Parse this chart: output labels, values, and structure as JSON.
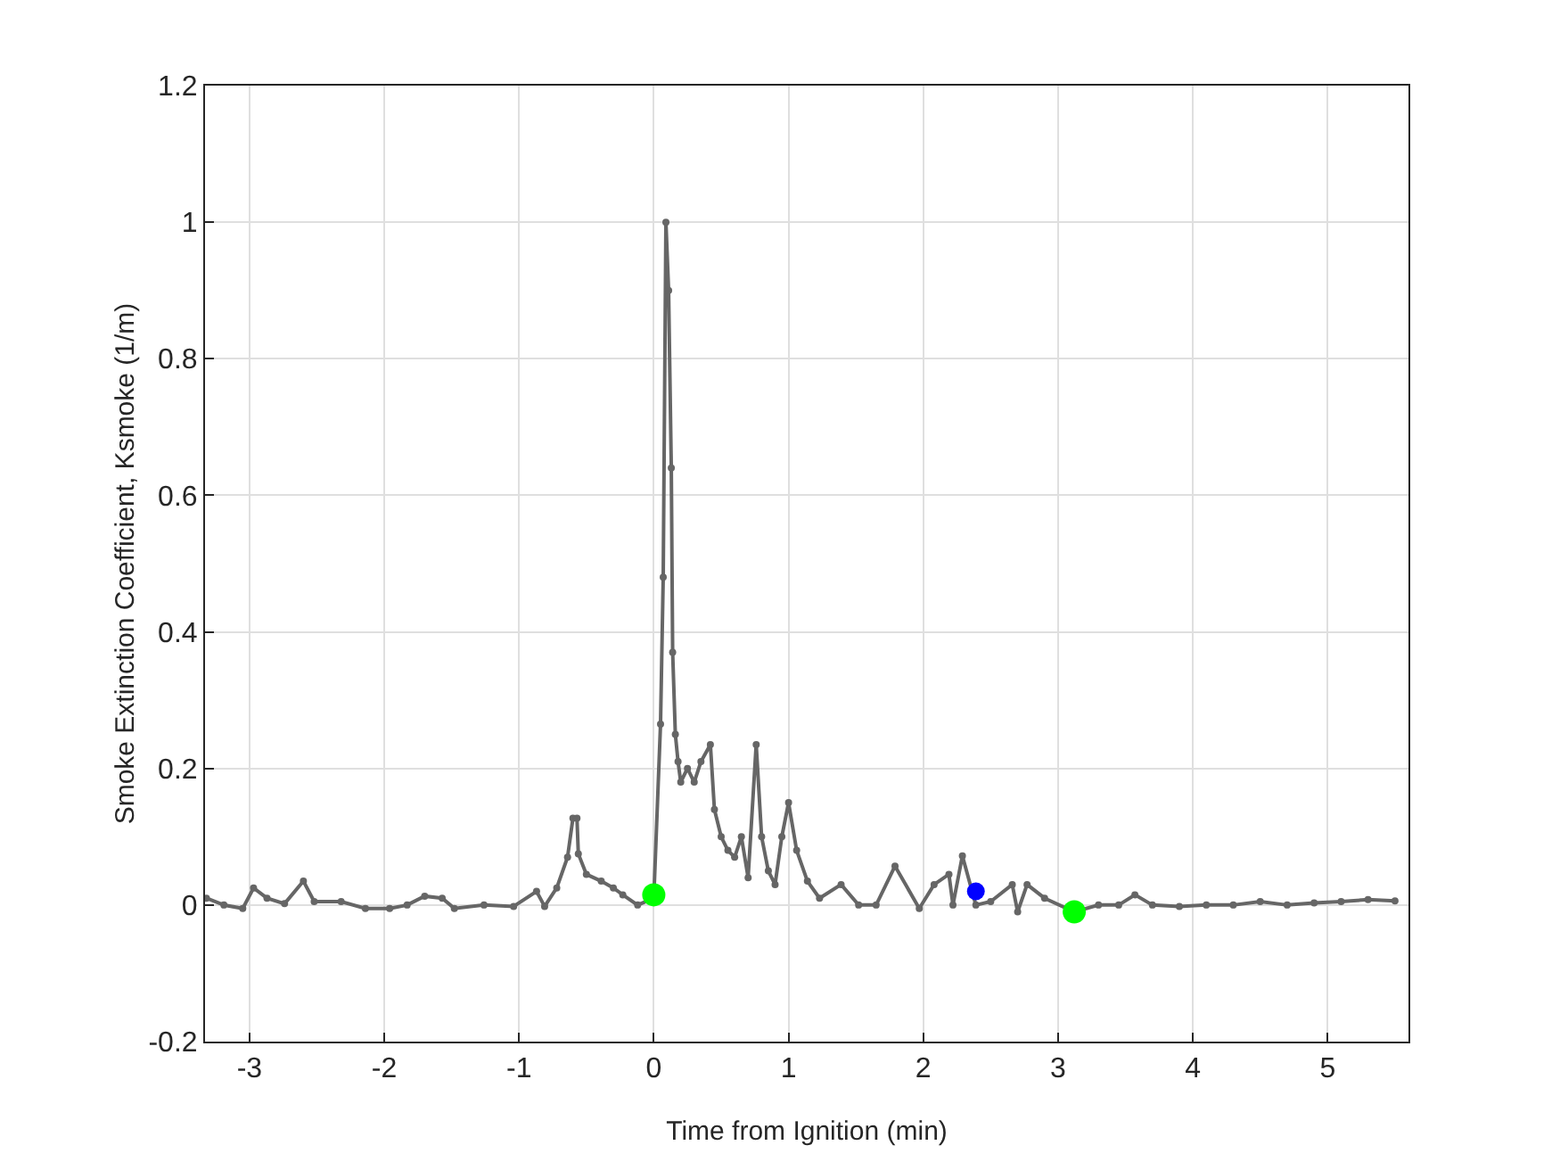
{
  "chart_data": {
    "type": "line",
    "xlabel": "Time from Ignition (min)",
    "ylabel": "Smoke Extinction Coefficient, Ksmoke (1/m)",
    "xlim": [
      -3.33,
      5.6
    ],
    "xticks": [
      -3,
      -2,
      -1,
      0,
      1,
      2,
      3,
      4,
      5
    ],
    "ylim": [
      -0.2,
      1.2
    ],
    "yticks": [
      -0.2,
      0,
      0.2,
      0.4,
      0.6,
      0.8,
      1,
      1.2
    ],
    "grid": true,
    "series": [
      {
        "color": "#666666",
        "marker": "circle",
        "line_style": "solid",
        "x": [
          -3.32,
          -3.19,
          -3.05,
          -2.97,
          -2.87,
          -2.74,
          -2.6,
          -2.52,
          -2.32,
          -2.14,
          -1.96,
          -1.83,
          -1.7,
          -1.57,
          -1.48,
          -1.26,
          -1.04,
          -0.87,
          -0.81,
          -0.72,
          -0.64,
          -0.6,
          -0.57,
          -0.56,
          -0.5,
          -0.39,
          -0.3,
          -0.23,
          -0.12,
          0,
          0.05,
          0.07,
          0.09,
          0.11,
          0.13,
          0.14,
          0.16,
          0.18,
          0.2,
          0.25,
          0.3,
          0.35,
          0.42,
          0.45,
          0.5,
          0.55,
          0.6,
          0.65,
          0.7,
          0.76,
          0.8,
          0.85,
          0.9,
          0.95,
          1.0,
          1.06,
          1.14,
          1.23,
          1.39,
          1.52,
          1.65,
          1.79,
          1.97,
          2.08,
          2.19,
          2.22,
          2.29,
          2.39,
          2.5,
          2.66,
          2.7,
          2.77,
          2.9,
          3.12,
          3.3,
          3.45,
          3.57,
          3.7,
          3.9,
          4.1,
          4.3,
          4.5,
          4.7,
          4.9,
          5.1,
          5.3,
          5.5
        ],
        "values": [
          0.01,
          0,
          -0.005,
          0.025,
          0.01,
          0.002,
          0.035,
          0.005,
          0.005,
          -0.005,
          -0.005,
          0,
          0.013,
          0.01,
          -0.005,
          0,
          -0.002,
          0.02,
          -0.002,
          0.025,
          0.07,
          0.127,
          0.127,
          0.075,
          0.045,
          0.035,
          0.025,
          0.015,
          0,
          0.01,
          0.265,
          0.48,
          1.0,
          0.9,
          0.64,
          0.37,
          0.25,
          0.21,
          0.18,
          0.2,
          0.18,
          0.21,
          0.235,
          0.14,
          0.1,
          0.08,
          0.07,
          0.1,
          0.04,
          0.235,
          0.1,
          0.05,
          0.03,
          0.1,
          0.15,
          0.08,
          0.035,
          0.01,
          0.03,
          0,
          0,
          0.057,
          -0.005,
          0.03,
          0.045,
          0,
          0.072,
          0,
          0.005,
          0.03,
          -0.01,
          0.03,
          0.01,
          -0.01,
          0,
          0,
          0.015,
          0,
          -0.002,
          0,
          0,
          0.005,
          0,
          0.003,
          0.005,
          0.008,
          0.006
        ]
      },
      {
        "type": "scatter",
        "color": "#00ff00",
        "marker": "circle",
        "x": [
          0,
          3.12
        ],
        "values": [
          0.015,
          -0.01
        ]
      },
      {
        "type": "scatter",
        "color": "#0000ff",
        "marker": "circle",
        "x": [
          2.39
        ],
        "values": [
          0.02
        ]
      }
    ]
  }
}
